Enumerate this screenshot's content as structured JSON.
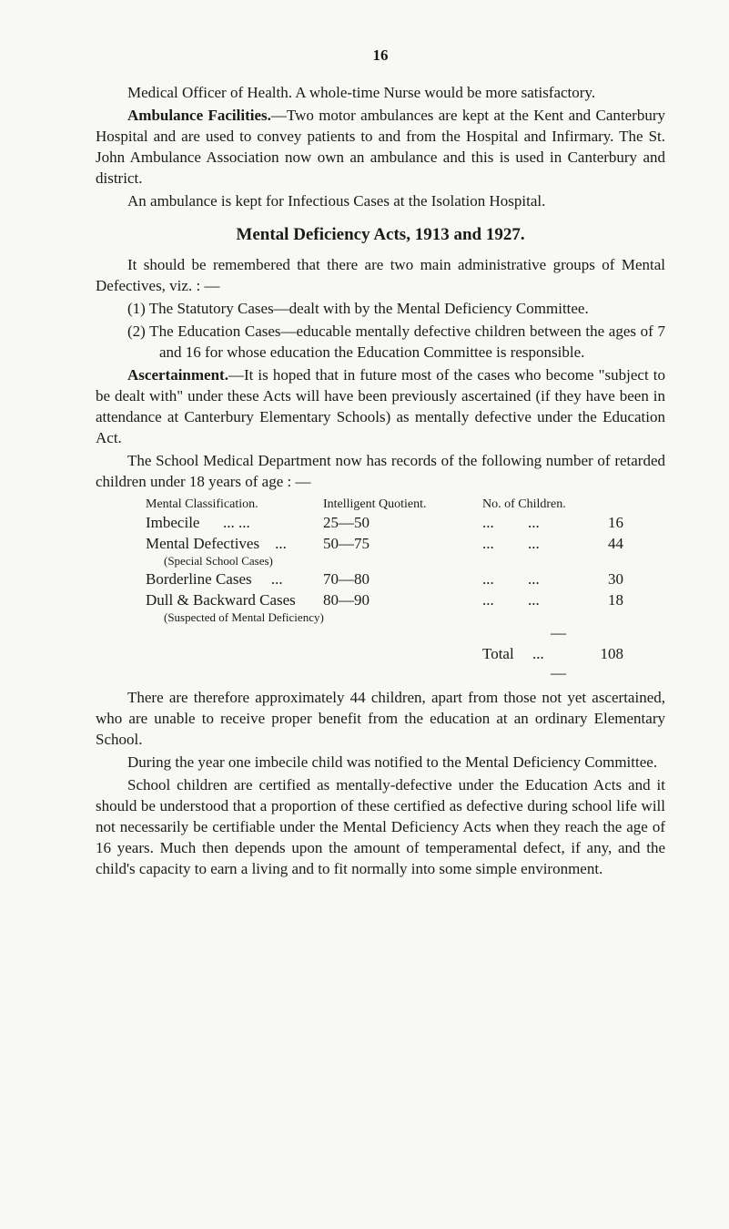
{
  "page_number": "16",
  "p1_part1": "Medical Officer of Health.     A whole-time Nurse would be more satisfactory.",
  "p2_bold": "Ambulance Facilities.",
  "p2_text": "—Two motor ambulances are kept at the Kent and Canterbury Hospital and are used to convey patients to and from the Hospital and Infirmary. The St. John Ambulance Association now own an ambulance and this is used in Canterbury and district.",
  "p3": "An ambulance is kept for Infectious Cases at the Isolation Hospital.",
  "heading1": "Mental Deficiency Acts, 1913 and 1927.",
  "p4": "It should be remembered that there are two main administrative groups of Mental Defectives, viz. : —",
  "list1": "(1) The Statutory Cases—dealt with by the Mental Deficiency Committee.",
  "list2": "(2) The Education Cases—educable mentally defective children between the ages of 7 and 16 for whose education the Education Committee is responsible.",
  "p5_bold": "Ascertainment.",
  "p5_text": "—It is hoped that in future most of the cases who become \"subject to be dealt with\" under these Acts will have been previously ascertained (if they have been in attendance at Canterbury Elementary Schools) as mentally defective under the Education Act.",
  "p6": "The School Medical Department now has records of the following number of retarded children under 18 years of age : —",
  "table": {
    "header": {
      "col1": "Mental Classification.",
      "col2": "Intelligent Quotient.",
      "col3": "No. of Children."
    },
    "rows": [
      {
        "label": "Imbecile",
        "dots1": "...     ...",
        "quotient": "25—50",
        "dots2": "...",
        "dots3": "...",
        "count": "16",
        "note": ""
      },
      {
        "label": "Mental Defectives",
        "dots1": "...",
        "quotient": "50—75",
        "dots2": "...",
        "dots3": "...",
        "count": "44",
        "note": "(Special School Cases)"
      },
      {
        "label": "Borderline Cases",
        "dots1": "...",
        "quotient": "70—80",
        "dots2": "...",
        "dots3": "...",
        "count": "30",
        "note": ""
      },
      {
        "label": "Dull & Backward Cases",
        "dots1": "",
        "quotient": "80—90",
        "dots2": "...",
        "dots3": "...",
        "count": "18",
        "note": "(Suspected of Mental Deficiency)"
      }
    ],
    "total_label": "Total",
    "total_dots": "...",
    "total_value": "108"
  },
  "p7": "There are therefore approximately 44 children, apart from those not yet ascertained, who are unable to receive proper benefit from the education at an ordinary Elementary School.",
  "p8": "During the year one imbecile child was notified to the Mental Deficiency Committee.",
  "p9": "School children are certified as mentally-defective under the Education Acts and it should be understood that a proportion of these certified as defective during school life will not necessarily be certifiable under the Mental Deficiency Acts when they reach the age of 16 years. Much then depends upon the amount of temperamental defect, if any, and the child's capacity to earn a living and to fit normally into some simple environment."
}
